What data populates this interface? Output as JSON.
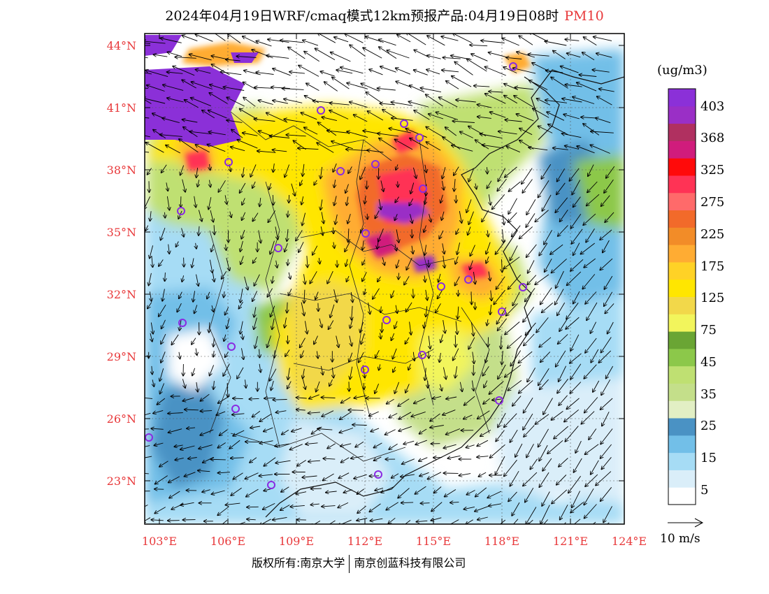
{
  "title": {
    "main": "2024年04月19日WRF/cmaq模式12km预报产品:04月19日08时",
    "variable": "PM10"
  },
  "axes": {
    "lat_labels": [
      "44°N",
      "41°N",
      "38°N",
      "35°N",
      "32°N",
      "29°N",
      "26°N",
      "23°N"
    ],
    "lat_values": [
      44,
      41,
      38,
      35,
      32,
      29,
      26,
      23
    ],
    "lon_labels": [
      "103°E",
      "106°E",
      "109°E",
      "112°E",
      "115°E",
      "118°E",
      "121°E",
      "124°E"
    ],
    "lon_values": [
      103,
      106,
      109,
      112,
      115,
      118,
      121,
      124
    ]
  },
  "colorbar": {
    "units": "(ug/m3)",
    "labels": [
      "403",
      "368",
      "325",
      "275",
      "225",
      "175",
      "125",
      "75",
      "45",
      "35",
      "25",
      "15",
      "5"
    ],
    "colors": [
      "#ffffff",
      "#daeef9",
      "#a6dcf5",
      "#72bfe8",
      "#4a92c4",
      "#e2efc4",
      "#c4df8a",
      "#bfe072",
      "#8cc84a",
      "#6aa534",
      "#f2f55c",
      "#f2d84a",
      "#ffe600",
      "#ffd226",
      "#ffac33",
      "#f28c28",
      "#f26a2a",
      "#ff6a6a",
      "#ff3355",
      "#ff0a0a",
      "#d01c7c",
      "#b03060",
      "#9a2fc6",
      "#8b30d8"
    ]
  },
  "wind_scale": {
    "label": "10 m/s"
  },
  "copyright": {
    "left": "版权所有:南京大学",
    "right": "南京创蓝科技有限公司"
  },
  "colors": {
    "tick_label": "#e8383a",
    "station_marker": "#8a2be2"
  }
}
